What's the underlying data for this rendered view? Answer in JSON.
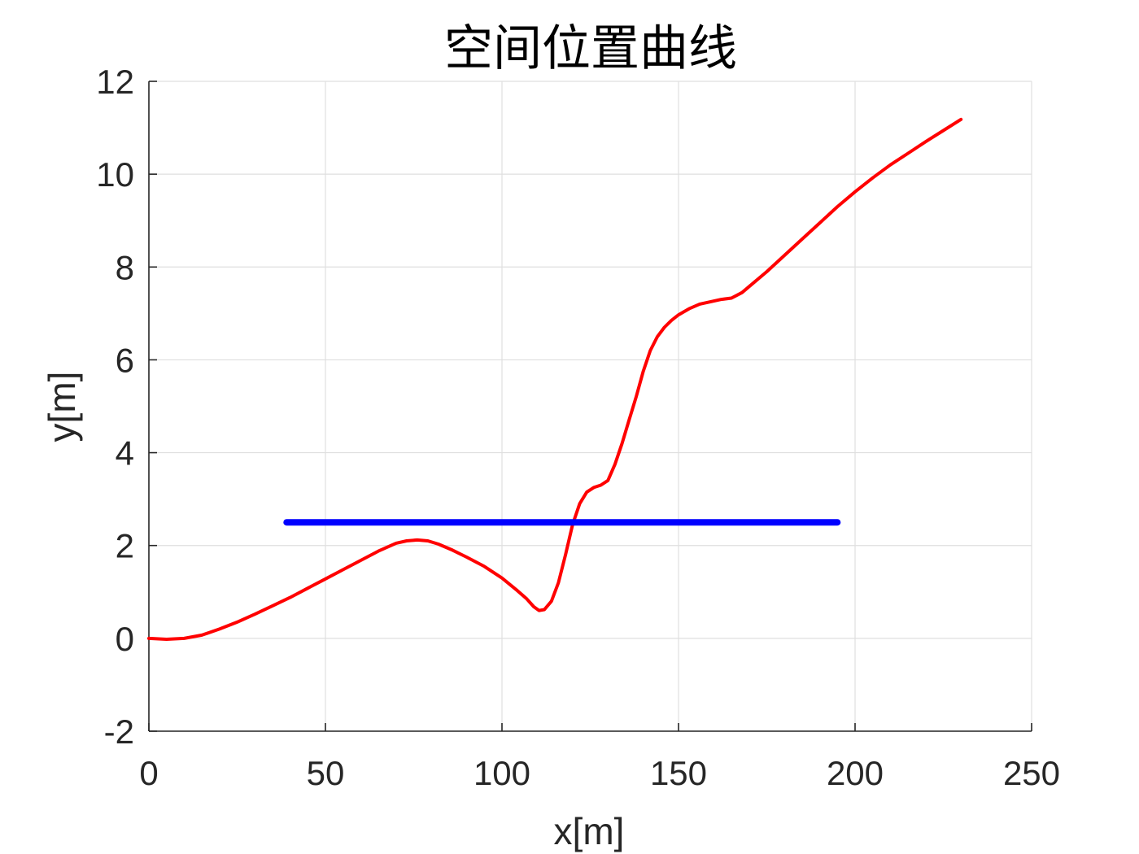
{
  "chart_data": {
    "type": "line",
    "title": "空间位置曲线",
    "xlabel": "x[m]",
    "ylabel": "y[m]",
    "xlim": [
      0,
      250
    ],
    "ylim": [
      -2,
      12
    ],
    "xticks": [
      0,
      50,
      100,
      150,
      200,
      250
    ],
    "xtick_labels": [
      "0",
      "50",
      "100",
      "150",
      "200",
      "250"
    ],
    "yticks": [
      -2,
      0,
      2,
      4,
      6,
      8,
      10,
      12
    ],
    "ytick_labels": [
      "-2",
      "0",
      "2",
      "4",
      "6",
      "8",
      "10",
      "12"
    ],
    "grid": true,
    "legend": "none",
    "series": [
      {
        "color": "#ff0000",
        "x": [
          0,
          5,
          10,
          15,
          20,
          25,
          30,
          35,
          40,
          45,
          50,
          55,
          60,
          65,
          70,
          73,
          76,
          79,
          82,
          86,
          90,
          95,
          100,
          104,
          107,
          109,
          110.5,
          112,
          114,
          116,
          118,
          120,
          122,
          124,
          126,
          128,
          130,
          132,
          134,
          136,
          138,
          140,
          142,
          144,
          146,
          148,
          150,
          153,
          156,
          159,
          162,
          165,
          168,
          170,
          175,
          180,
          185,
          190,
          195,
          200,
          205,
          210,
          215,
          220,
          225,
          230
        ],
        "y": [
          0.0,
          -0.02,
          0.0,
          0.07,
          0.2,
          0.35,
          0.52,
          0.7,
          0.88,
          1.08,
          1.28,
          1.48,
          1.68,
          1.88,
          2.05,
          2.1,
          2.12,
          2.1,
          2.03,
          1.9,
          1.75,
          1.55,
          1.3,
          1.05,
          0.85,
          0.68,
          0.6,
          0.62,
          0.8,
          1.2,
          1.8,
          2.45,
          2.9,
          3.15,
          3.25,
          3.3,
          3.4,
          3.75,
          4.2,
          4.7,
          5.2,
          5.75,
          6.2,
          6.5,
          6.7,
          6.85,
          6.97,
          7.1,
          7.2,
          7.25,
          7.3,
          7.33,
          7.45,
          7.58,
          7.9,
          8.25,
          8.6,
          8.95,
          9.3,
          9.62,
          9.92,
          10.2,
          10.45,
          10.7,
          10.94,
          11.18
        ]
      },
      {
        "color": "#0000ff",
        "x": [
          39,
          195
        ],
        "y": [
          2.5,
          2.5
        ]
      }
    ]
  }
}
